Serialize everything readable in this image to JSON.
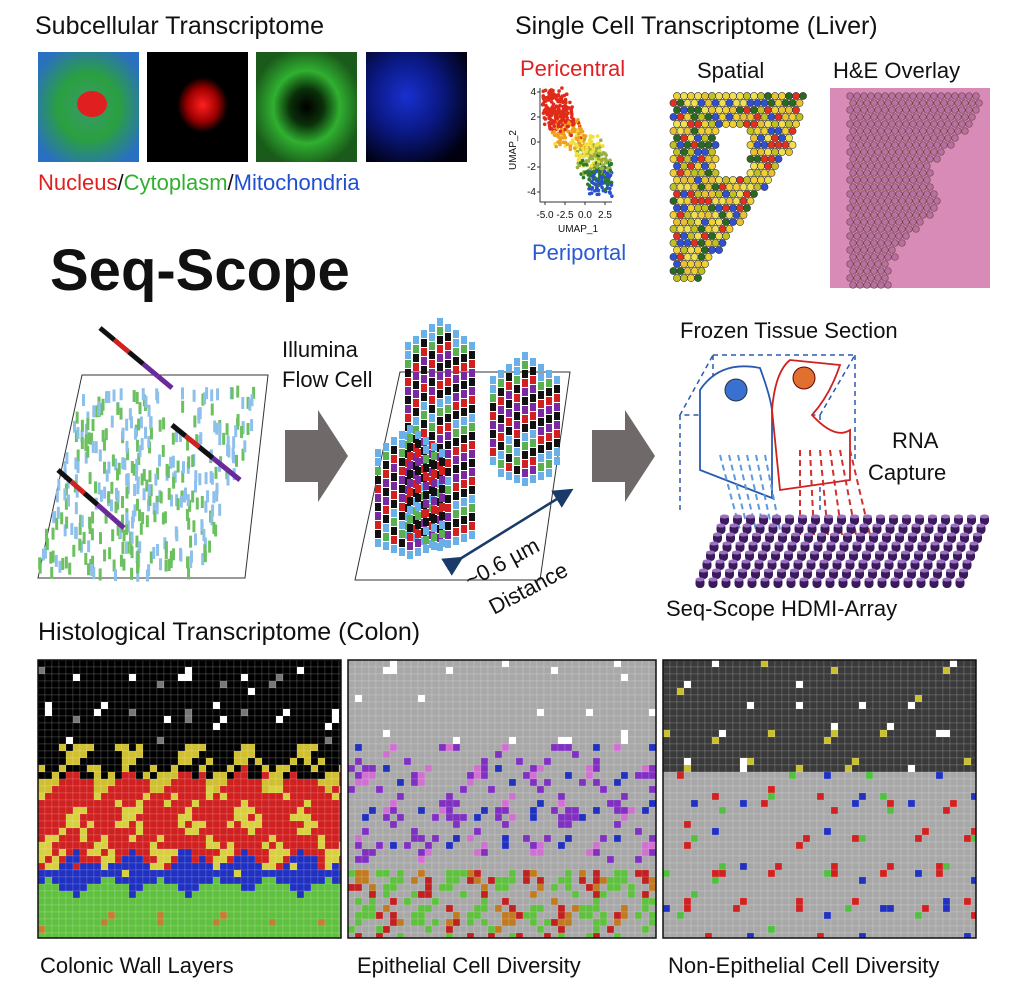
{
  "subcellular": {
    "title": "Subcellular Transcriptome",
    "legend": [
      "Nucleus",
      "/",
      "Cytoplasm",
      "/",
      "Mitochondria"
    ]
  },
  "single_cell": {
    "title": "Single Cell Transcriptome (Liver)",
    "umap": {
      "top_label": "Pericentral",
      "bottom_label": "Periportal",
      "y_axis_label": "UMAP_2",
      "x_axis_label": "UMAP_1",
      "yticks": [
        "4",
        "2",
        "0",
        "-2",
        "-4"
      ],
      "xticks": [
        "-5.0",
        "-2.5",
        "0.0",
        "2.5"
      ]
    },
    "spatial_label": "Spatial",
    "overlay_label": "H&E Overlay"
  },
  "seq_scope": {
    "title": "Seq-Scope",
    "flow_cell_label": [
      "Illumina",
      "Flow Cell"
    ],
    "distance_label": [
      "~0.6 µm",
      "Distance"
    ],
    "tissue_label": "Frozen Tissue Section",
    "capture_label": [
      "RNA",
      "Capture"
    ],
    "array_label": "Seq-Scope HDMI-Array"
  },
  "histological": {
    "title": "Histological Transcriptome (Colon)",
    "panels": [
      {
        "caption": "Colonic Wall Layers"
      },
      {
        "caption": "Epithelial Cell Diversity"
      },
      {
        "caption": "Non-Epithelial Cell Diversity"
      }
    ]
  }
}
